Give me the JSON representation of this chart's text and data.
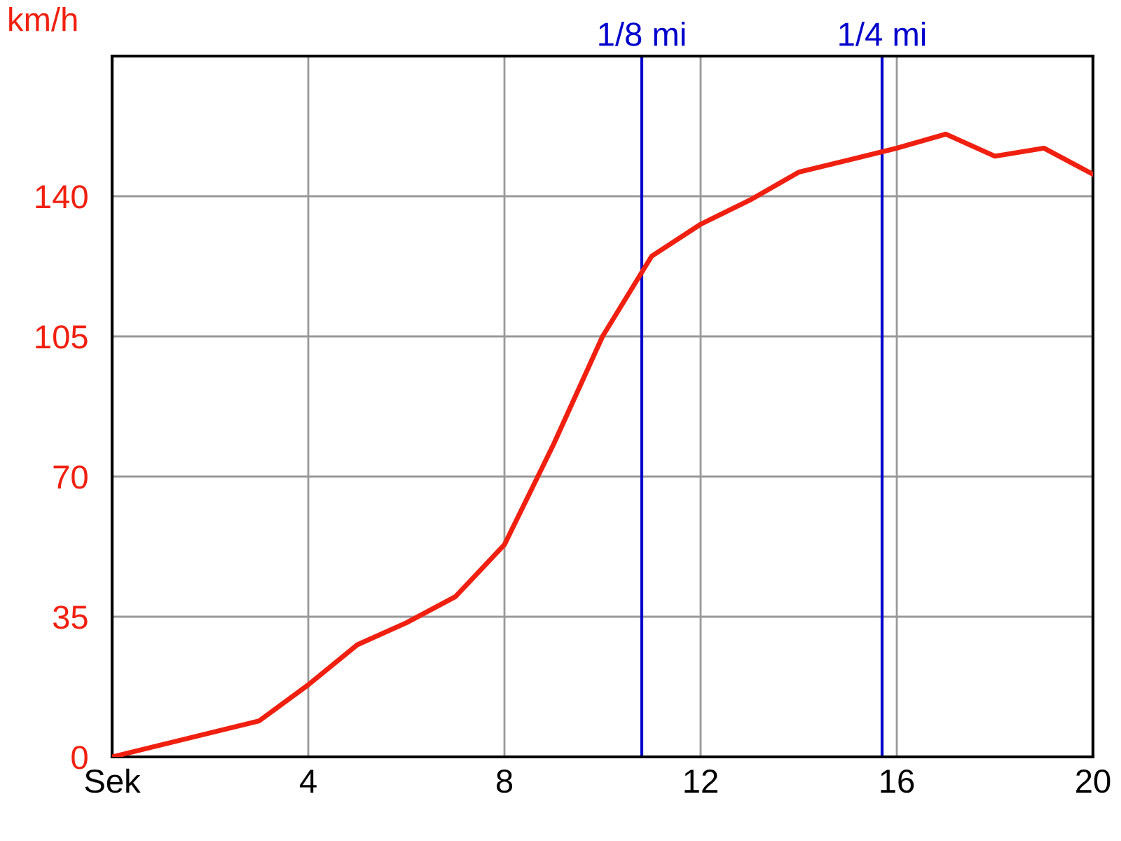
{
  "chart_data": {
    "type": "line",
    "ylabel": "km/h",
    "x": [
      0,
      3,
      4,
      5,
      6,
      7,
      8,
      9,
      10,
      11,
      12,
      13,
      14,
      15,
      16,
      17,
      18,
      19,
      20
    ],
    "series": [
      {
        "color": "#f02010",
        "values": [
          0,
          9,
          18,
          28,
          33.5,
          40,
          53,
          78,
          105,
          125,
          133,
          139,
          146,
          149,
          152,
          155.5,
          150,
          152,
          145.5
        ]
      }
    ],
    "xlim": [
      0,
      20
    ],
    "xticks": [
      {
        "value": 0,
        "label": "Sek"
      },
      4,
      8,
      12,
      16,
      20
    ],
    "ylim": [
      0,
      175
    ],
    "yticks": [
      0,
      35,
      70,
      105,
      140
    ],
    "grid": true,
    "marker": "none",
    "line_style": "solid",
    "ref_lines": [
      {
        "axis": "x",
        "value": 10.8,
        "label": "1/8 mi",
        "color": "#0000cc"
      },
      {
        "axis": "x",
        "value": 15.7,
        "label": "1/4 mi",
        "color": "#0000cc"
      }
    ]
  }
}
